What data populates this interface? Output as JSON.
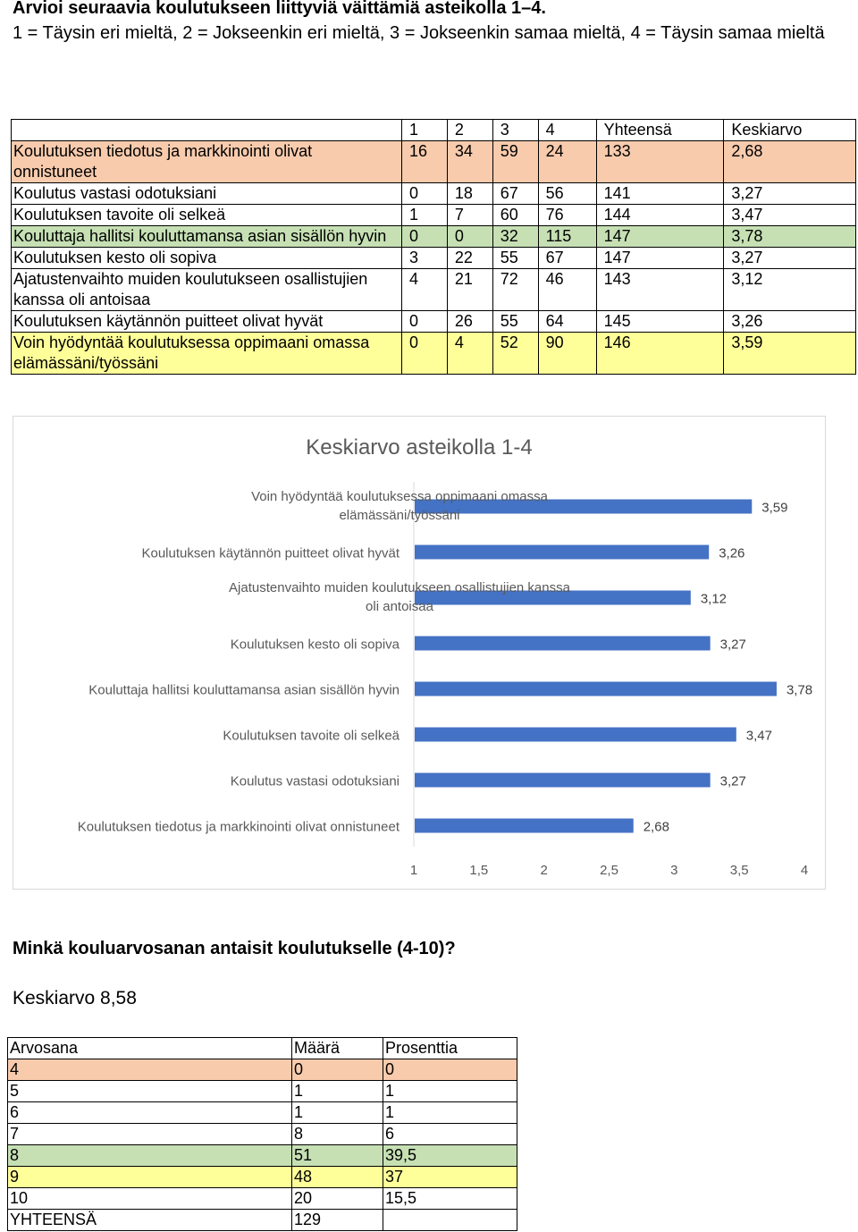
{
  "heading": "Arvioi seuraavia koulutukseen liittyviä väittämiä asteikolla 1–4.",
  "scale_desc": "1 = Täysin eri mieltä, 2 = Jokseenkin eri mieltä, 3 = Jokseenkin samaa mieltä, 4 = Täysin samaa mieltä",
  "table1": {
    "headers": [
      "",
      "1",
      "2",
      "3",
      "4",
      "Yhteensä",
      "Keskiarvo"
    ],
    "rows": [
      {
        "label": "Koulutuksen tiedotus ja markkinointi olivat onnistuneet",
        "c1": "16",
        "c2": "34",
        "c3": "59",
        "c4": "24",
        "total": "133",
        "avg": "2,68",
        "color": "peach"
      },
      {
        "label": "Koulutus vastasi odotuksiani",
        "c1": "0",
        "c2": "18",
        "c3": "67",
        "c4": "56",
        "total": "141",
        "avg": "3,27",
        "color": ""
      },
      {
        "label": "Koulutuksen tavoite oli selkeä",
        "c1": "1",
        "c2": "7",
        "c3": "60",
        "c4": "76",
        "total": "144",
        "avg": "3,47",
        "color": ""
      },
      {
        "label": "Kouluttaja hallitsi kouluttamansa asian sisällön hyvin",
        "c1": "0",
        "c2": "0",
        "c3": "32",
        "c4": "115",
        "total": "147",
        "avg": "3,78",
        "color": "green"
      },
      {
        "label": "Koulutuksen kesto oli sopiva",
        "c1": "3",
        "c2": "22",
        "c3": "55",
        "c4": "67",
        "total": "147",
        "avg": "3,27",
        "color": ""
      },
      {
        "label": "Ajatustenvaihto muiden koulutukseen osallistujien kanssa oli antoisaa",
        "c1": "4",
        "c2": "21",
        "c3": "72",
        "c4": "46",
        "total": "143",
        "avg": "3,12",
        "color": ""
      },
      {
        "label": "Koulutuksen käytännön puitteet olivat hyvät",
        "c1": "0",
        "c2": "26",
        "c3": "55",
        "c4": "64",
        "total": "145",
        "avg": "3,26",
        "color": ""
      },
      {
        "label": "Voin hyödyntää koulutuksessa oppimaani omassa elämässäni/työssäni",
        "c1": "0",
        "c2": "4",
        "c3": "52",
        "c4": "90",
        "total": "146",
        "avg": "3,59",
        "color": "yellow"
      }
    ]
  },
  "chart_data": {
    "type": "bar",
    "orientation": "horizontal",
    "title": "Keskiarvo asteikolla 1-4",
    "categories": [
      [
        "Voin hyödyntää koulutuksessa oppimaani omassa",
        "elämässäni/työssäni"
      ],
      [
        "Koulutuksen käytännön puitteet olivat hyvät"
      ],
      [
        "Ajatustenvaihto muiden koulutukseen osallistujien kanssa",
        "oli antoisaa"
      ],
      [
        "Koulutuksen kesto oli sopiva"
      ],
      [
        "Kouluttaja hallitsi kouluttamansa asian sisällön hyvin"
      ],
      [
        "Koulutuksen tavoite oli selkeä"
      ],
      [
        "Koulutus vastasi odotuksiani"
      ],
      [
        "Koulutuksen tiedotus ja markkinointi olivat onnistuneet"
      ]
    ],
    "values": [
      3.59,
      3.26,
      3.12,
      3.27,
      3.78,
      3.47,
      3.27,
      2.68
    ],
    "value_labels": [
      "3,59",
      "3,26",
      "3,12",
      "3,27",
      "3,78",
      "3,47",
      "3,27",
      "2,68"
    ],
    "xlim": [
      1,
      4
    ],
    "xticks": [
      "1",
      "1,5",
      "2",
      "2,5",
      "3",
      "3,5",
      "4"
    ],
    "bar_color": "#4472c4",
    "grid": false
  },
  "question2": "Minkä kouluarvosanan antaisit koulutukselle (4-10)?",
  "average_text": "Keskiarvo 8,58",
  "table2": {
    "headers": [
      "Arvosana",
      "Määrä",
      "Prosenttia"
    ],
    "rows": [
      {
        "grade": "4",
        "count": "0",
        "pct": "0",
        "color": "peach"
      },
      {
        "grade": "5",
        "count": "1",
        "pct": "1",
        "color": ""
      },
      {
        "grade": "6",
        "count": "1",
        "pct": "1",
        "color": ""
      },
      {
        "grade": "7",
        "count": "8",
        "pct": "6",
        "color": ""
      },
      {
        "grade": "8",
        "count": "51",
        "pct": "39,5",
        "color": "green"
      },
      {
        "grade": "9",
        "count": "48",
        "pct": "37",
        "color": "yellow"
      },
      {
        "grade": "10",
        "count": "20",
        "pct": "15,5",
        "color": ""
      },
      {
        "grade": "YHTEENSÄ",
        "count": "129",
        "pct": "",
        "color": ""
      }
    ]
  }
}
